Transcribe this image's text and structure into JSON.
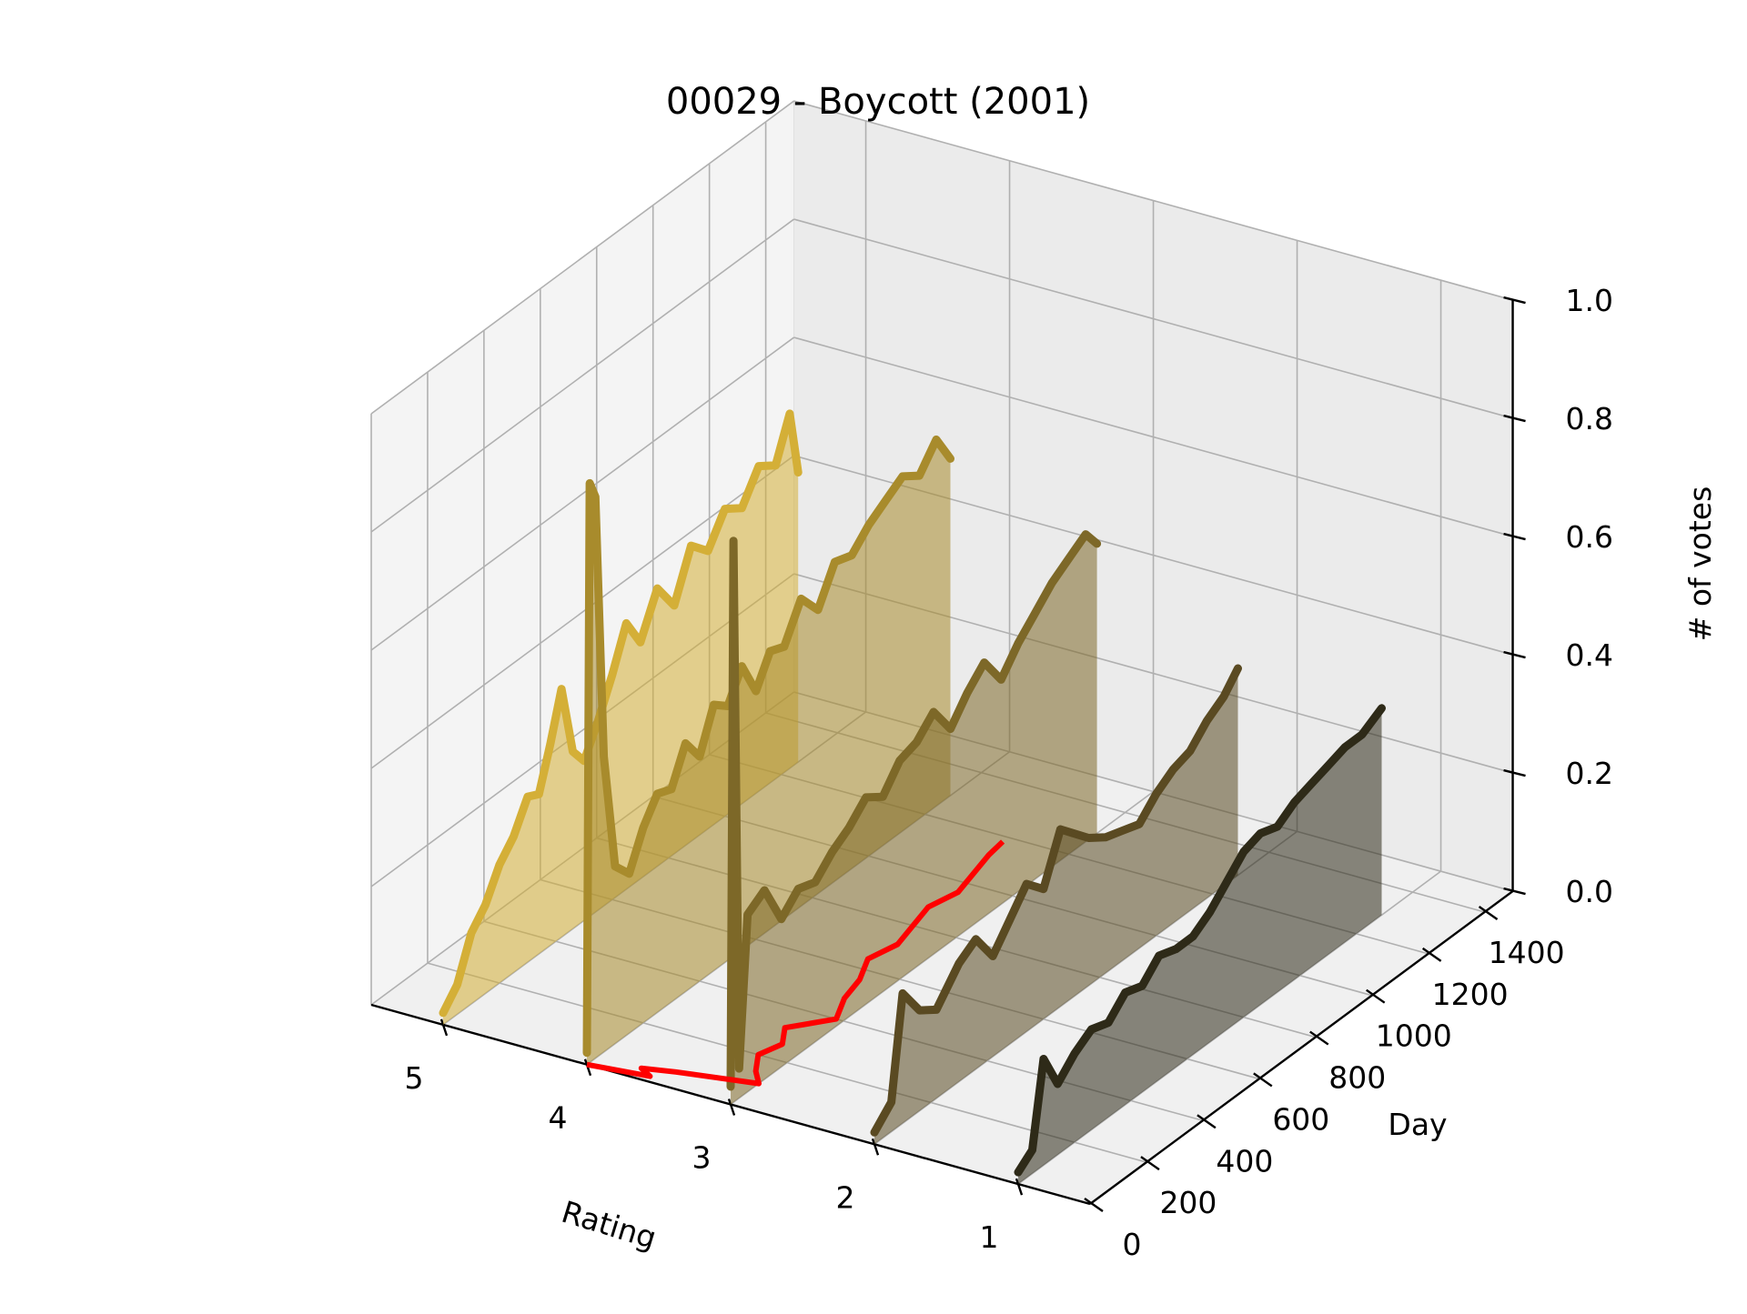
{
  "chart_data": {
    "type": "line",
    "projection": "3d",
    "title": "00029 - Boycott (2001)",
    "xlabel": "Rating",
    "ylabel": "Day",
    "zlabel": "# of votes",
    "xlim": [
      0.5,
      5.5
    ],
    "ylim": [
      0,
      1500
    ],
    "zlim": [
      0,
      1
    ],
    "x_ticks": [
      5,
      4,
      3,
      2,
      1
    ],
    "y_ticks": [
      0,
      200,
      400,
      600,
      800,
      1000,
      1200,
      1400
    ],
    "z_ticks": [
      "0.0",
      "0.2",
      "0.4",
      "0.6",
      "0.8",
      "1.0"
    ],
    "grid": true,
    "filled": true,
    "series": [
      {
        "rating": 5,
        "color": "#d4af37",
        "points": [
          [
            0,
            0.02
          ],
          [
            50,
            0.05
          ],
          [
            100,
            0.12
          ],
          [
            150,
            0.15
          ],
          [
            200,
            0.2
          ],
          [
            250,
            0.23
          ],
          [
            300,
            0.28
          ],
          [
            340,
            0.27
          ],
          [
            380,
            0.34
          ],
          [
            420,
            0.42
          ],
          [
            460,
            0.3
          ],
          [
            500,
            0.27
          ],
          [
            550,
            0.32
          ],
          [
            600,
            0.38
          ],
          [
            650,
            0.45
          ],
          [
            700,
            0.4
          ],
          [
            760,
            0.47
          ],
          [
            820,
            0.42
          ],
          [
            880,
            0.5
          ],
          [
            940,
            0.47
          ],
          [
            1000,
            0.52
          ],
          [
            1060,
            0.5
          ],
          [
            1120,
            0.55
          ],
          [
            1180,
            0.53
          ],
          [
            1230,
            0.6
          ],
          [
            1260,
            0.49
          ]
        ]
      },
      {
        "rating": 4,
        "color": "#a88b2c",
        "points": [
          [
            0,
            0.02
          ],
          [
            10,
            0.98
          ],
          [
            30,
            0.95
          ],
          [
            60,
            0.5
          ],
          [
            100,
            0.3
          ],
          [
            150,
            0.27
          ],
          [
            200,
            0.33
          ],
          [
            250,
            0.37
          ],
          [
            300,
            0.36
          ],
          [
            350,
            0.42
          ],
          [
            400,
            0.38
          ],
          [
            450,
            0.45
          ],
          [
            500,
            0.43
          ],
          [
            550,
            0.48
          ],
          [
            600,
            0.42
          ],
          [
            650,
            0.47
          ],
          [
            700,
            0.46
          ],
          [
            760,
            0.52
          ],
          [
            820,
            0.48
          ],
          [
            880,
            0.54
          ],
          [
            940,
            0.53
          ],
          [
            1000,
            0.56
          ],
          [
            1060,
            0.58
          ],
          [
            1120,
            0.6
          ],
          [
            1180,
            0.58
          ],
          [
            1240,
            0.62
          ],
          [
            1290,
            0.57
          ]
        ]
      },
      {
        "rating": 3,
        "color": "#7d6828",
        "points": [
          [
            0,
            0.03
          ],
          [
            10,
            0.95
          ],
          [
            30,
            0.05
          ],
          [
            60,
            0.3
          ],
          [
            120,
            0.32
          ],
          [
            180,
            0.25
          ],
          [
            240,
            0.28
          ],
          [
            300,
            0.27
          ],
          [
            360,
            0.3
          ],
          [
            420,
            0.32
          ],
          [
            480,
            0.35
          ],
          [
            540,
            0.33
          ],
          [
            600,
            0.37
          ],
          [
            660,
            0.38
          ],
          [
            720,
            0.41
          ],
          [
            780,
            0.36
          ],
          [
            840,
            0.4
          ],
          [
            900,
            0.43
          ],
          [
            960,
            0.38
          ],
          [
            1020,
            0.42
          ],
          [
            1080,
            0.45
          ],
          [
            1140,
            0.48
          ],
          [
            1200,
            0.5
          ],
          [
            1260,
            0.52
          ],
          [
            1300,
            0.49
          ]
        ]
      },
      {
        "rating": 2,
        "color": "#5a4a22",
        "points": [
          [
            0,
            0.02
          ],
          [
            60,
            0.05
          ],
          [
            100,
            0.22
          ],
          [
            160,
            0.17
          ],
          [
            220,
            0.15
          ],
          [
            300,
            0.2
          ],
          [
            360,
            0.22
          ],
          [
            420,
            0.17
          ],
          [
            480,
            0.21
          ],
          [
            540,
            0.25
          ],
          [
            600,
            0.22
          ],
          [
            660,
            0.3
          ],
          [
            700,
            0.28
          ],
          [
            760,
            0.25
          ],
          [
            820,
            0.23
          ],
          [
            880,
            0.22
          ],
          [
            940,
            0.21
          ],
          [
            1000,
            0.24
          ],
          [
            1060,
            0.26
          ],
          [
            1120,
            0.27
          ],
          [
            1180,
            0.3
          ],
          [
            1240,
            0.32
          ],
          [
            1290,
            0.35
          ]
        ]
      },
      {
        "rating": 1,
        "color": "#2e2a18",
        "points": [
          [
            0,
            0.02
          ],
          [
            50,
            0.04
          ],
          [
            90,
            0.18
          ],
          [
            140,
            0.12
          ],
          [
            200,
            0.15
          ],
          [
            260,
            0.17
          ],
          [
            320,
            0.16
          ],
          [
            380,
            0.19
          ],
          [
            440,
            0.18
          ],
          [
            500,
            0.21
          ],
          [
            560,
            0.2
          ],
          [
            620,
            0.2
          ],
          [
            680,
            0.22
          ],
          [
            740,
            0.25
          ],
          [
            800,
            0.28
          ],
          [
            860,
            0.29
          ],
          [
            920,
            0.28
          ],
          [
            980,
            0.3
          ],
          [
            1040,
            0.31
          ],
          [
            1100,
            0.32
          ],
          [
            1160,
            0.33
          ],
          [
            1220,
            0.33
          ],
          [
            1290,
            0.35
          ]
        ]
      }
    ],
    "mean_rating": {
      "color": "#ff0000",
      "points": [
        [
          0,
          4.0
        ],
        [
          20,
          3.6
        ],
        [
          40,
          3.7
        ],
        [
          60,
          3.5
        ],
        [
          80,
          3.25
        ],
        [
          100,
          3.0
        ],
        [
          140,
          3.1
        ],
        [
          200,
          3.2
        ],
        [
          260,
          3.15
        ],
        [
          320,
          3.25
        ],
        [
          400,
          3.05
        ],
        [
          480,
          3.15
        ],
        [
          560,
          3.2
        ],
        [
          640,
          3.3
        ],
        [
          720,
          3.25
        ],
        [
          800,
          3.3
        ],
        [
          880,
          3.35
        ],
        [
          960,
          3.3
        ],
        [
          1040,
          3.35
        ],
        [
          1120,
          3.4
        ],
        [
          1180,
          3.42
        ]
      ]
    }
  }
}
